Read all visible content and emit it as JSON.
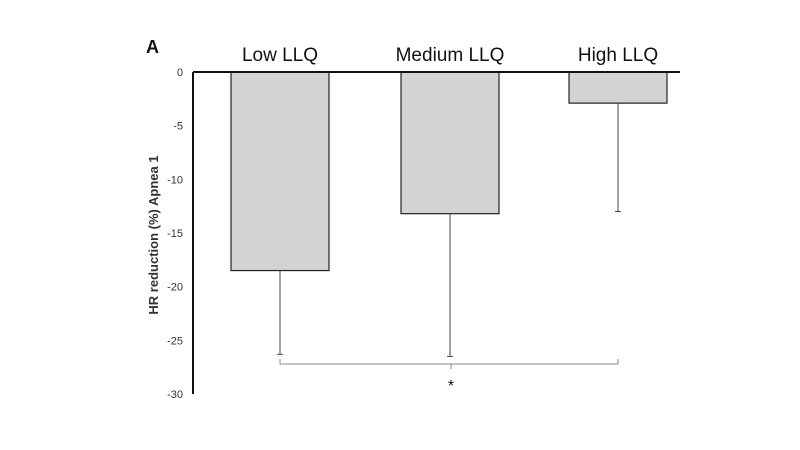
{
  "chart_data": {
    "type": "bar",
    "panel_label": "A",
    "title": "",
    "xlabel": "",
    "ylabel": "HR reduction (%) Apnea 1",
    "categories": [
      "Low LLQ",
      "Medium LLQ",
      "High LLQ"
    ],
    "values": [
      -18.5,
      -13.2,
      -2.9
    ],
    "error_lower": [
      -26.3,
      -26.5,
      -13.0
    ],
    "ylim": [
      -30,
      0
    ],
    "yticks": [
      "0",
      "-5",
      "-10",
      "-15",
      "-20",
      "-25",
      "-30"
    ],
    "ytick_values": [
      0,
      -5,
      -10,
      -15,
      -20,
      -25,
      -30
    ],
    "bar_color": "#d3d3d3",
    "bar_edge_color": "#222222",
    "grid": false,
    "significance": {
      "label": "*",
      "from_category": "Low LLQ",
      "to_category": "High LLQ",
      "y": -27.2
    }
  }
}
